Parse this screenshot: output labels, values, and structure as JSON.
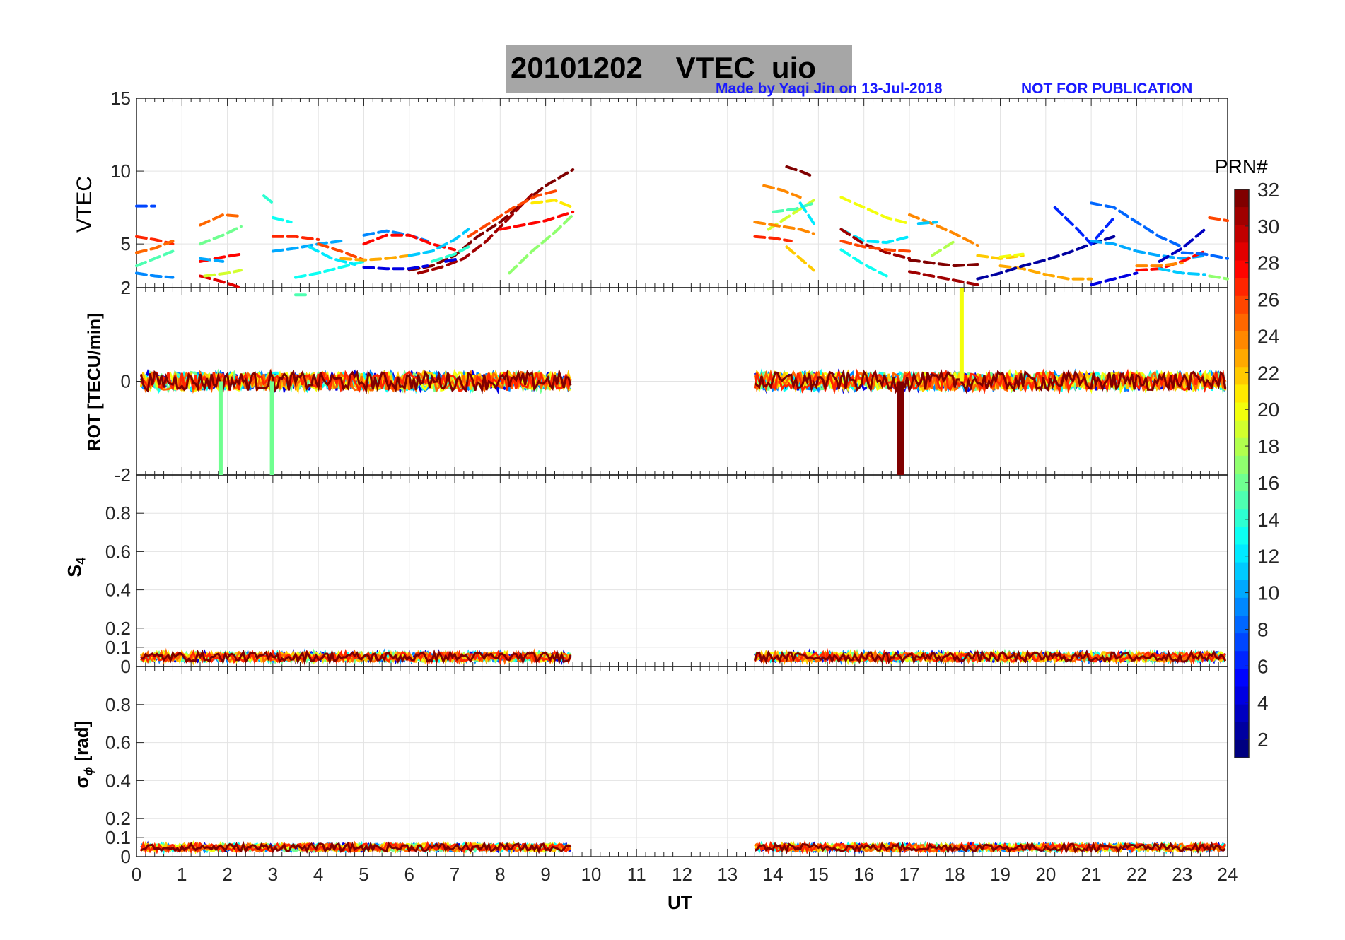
{
  "title": {
    "date": "20101202",
    "product": "VTEC",
    "station": "uio"
  },
  "credit": {
    "author": "Made by Yaqi Jin on 13-Jul-2018",
    "notice": "NOT FOR PUBLICATION"
  },
  "colorbar": {
    "title": "PRN#",
    "ticks": [
      "2",
      "4",
      "6",
      "8",
      "10",
      "12",
      "14",
      "16",
      "18",
      "20",
      "22",
      "24",
      "26",
      "28",
      "30",
      "32"
    ],
    "range": [
      1,
      32
    ],
    "colormap": "jet"
  },
  "chart_data": [
    {
      "type": "line",
      "panel": "vtec",
      "ylabel": "VTEC",
      "ylim": [
        2,
        15
      ],
      "yticks": [
        "15",
        "10",
        "5",
        "2"
      ],
      "xlim": [
        0,
        24
      ],
      "grid": true,
      "series": [
        {
          "prn": 32,
          "x": [
            6.0,
            6.5,
            7.0,
            7.5,
            8.0,
            8.5,
            9.0,
            9.6
          ],
          "y": [
            3.2,
            3.5,
            4.2,
            5.5,
            6.5,
            7.8,
            9.0,
            10.1
          ]
        },
        {
          "prn": 31,
          "x": [
            6.2,
            6.7,
            7.2,
            7.7,
            8.2,
            8.7
          ],
          "y": [
            3.0,
            3.4,
            4.0,
            5.2,
            6.8,
            8.4
          ]
        },
        {
          "prn": 26,
          "x": [
            7.3,
            7.8,
            8.3,
            8.8,
            9.3
          ],
          "y": [
            5.5,
            6.5,
            7.5,
            8.3,
            8.7
          ]
        },
        {
          "prn": 28,
          "x": [
            8.0,
            8.5,
            9.0,
            9.6
          ],
          "y": [
            6.0,
            6.3,
            6.6,
            7.2
          ]
        },
        {
          "prn": 21,
          "x": [
            8.7,
            9.2,
            9.6
          ],
          "y": [
            7.8,
            8.0,
            7.5
          ]
        },
        {
          "prn": 17,
          "x": [
            8.2,
            8.7,
            9.2,
            9.6
          ],
          "y": [
            3.0,
            4.5,
            5.8,
            7.0
          ]
        },
        {
          "prn": 27,
          "x": [
            0.0,
            0.4,
            0.8
          ],
          "y": [
            5.5,
            5.3,
            5.0
          ]
        },
        {
          "prn": 25,
          "x": [
            0.0,
            0.4,
            0.8
          ],
          "y": [
            4.4,
            4.7,
            5.2
          ]
        },
        {
          "prn": 15,
          "x": [
            0.0,
            0.4,
            0.8
          ],
          "y": [
            3.5,
            4.0,
            4.5
          ]
        },
        {
          "prn": 9,
          "x": [
            0.0,
            0.4,
            0.8
          ],
          "y": [
            3.0,
            2.8,
            2.7
          ]
        },
        {
          "prn": 7,
          "x": [
            0.0,
            0.4
          ],
          "y": [
            7.6,
            7.6
          ]
        },
        {
          "prn": 25,
          "x": [
            1.4,
            1.9,
            2.3
          ],
          "y": [
            6.3,
            7.0,
            6.9
          ]
        },
        {
          "prn": 16,
          "x": [
            1.4,
            1.9,
            2.3
          ],
          "y": [
            5.0,
            5.6,
            6.2
          ]
        },
        {
          "prn": 28,
          "x": [
            1.4,
            1.9,
            2.3
          ],
          "y": [
            3.8,
            4.1,
            4.3
          ]
        },
        {
          "prn": 10,
          "x": [
            1.4,
            1.9
          ],
          "y": [
            4.0,
            3.8
          ]
        },
        {
          "prn": 29,
          "x": [
            1.4,
            1.9,
            2.3
          ],
          "y": [
            2.8,
            2.4,
            2.0
          ]
        },
        {
          "prn": 19,
          "x": [
            1.5,
            2.0,
            2.3
          ],
          "y": [
            2.8,
            3.0,
            3.2
          ]
        },
        {
          "prn": 14,
          "x": [
            2.8,
            3.0
          ],
          "y": [
            8.3,
            7.8
          ]
        },
        {
          "prn": 13,
          "x": [
            3.0,
            3.4
          ],
          "y": [
            6.8,
            6.5
          ]
        },
        {
          "prn": 27,
          "x": [
            3.0,
            3.5,
            4.0
          ],
          "y": [
            5.5,
            5.5,
            5.3
          ]
        },
        {
          "prn": 10,
          "x": [
            3.0,
            3.5,
            4.0,
            4.5
          ],
          "y": [
            4.5,
            4.7,
            5.0,
            5.2
          ]
        },
        {
          "prn": 13,
          "x": [
            3.5,
            4.0,
            4.5,
            5.0
          ],
          "y": [
            2.7,
            3.0,
            3.4,
            3.8
          ]
        },
        {
          "prn": 15,
          "x": [
            3.5,
            3.8
          ],
          "y": [
            1.5,
            1.5
          ]
        },
        {
          "prn": 12,
          "x": [
            3.8,
            4.3,
            4.8
          ],
          "y": [
            4.8,
            4.0,
            3.6
          ]
        },
        {
          "prn": 26,
          "x": [
            4.0,
            4.5,
            5.0
          ],
          "y": [
            5.0,
            4.5,
            3.9
          ]
        },
        {
          "prn": 23,
          "x": [
            4.5,
            5.0,
            5.5,
            6.0
          ],
          "y": [
            4.0,
            3.9,
            4.0,
            4.2
          ]
        },
        {
          "prn": 9,
          "x": [
            5.0,
            5.5,
            6.0,
            6.4
          ],
          "y": [
            5.6,
            5.9,
            5.6,
            5.2
          ]
        },
        {
          "prn": 4,
          "x": [
            5.0,
            5.5,
            6.0,
            6.4
          ],
          "y": [
            3.4,
            3.3,
            3.3,
            3.5
          ]
        },
        {
          "prn": 28,
          "x": [
            5.0,
            5.5,
            6.0,
            6.5,
            7.0
          ],
          "y": [
            5.0,
            5.6,
            5.6,
            5.0,
            4.6
          ]
        },
        {
          "prn": 11,
          "x": [
            6.0,
            6.5,
            7.0,
            7.3
          ],
          "y": [
            4.2,
            4.5,
            5.3,
            6.0
          ]
        },
        {
          "prn": 14,
          "x": [
            6.5,
            7.0,
            7.3
          ],
          "y": [
            3.8,
            4.3,
            4.8
          ]
        },
        {
          "prn": 4,
          "x": [
            6.8,
            7.1
          ],
          "y": [
            3.8,
            4.0
          ]
        },
        {
          "prn": 32,
          "x": [
            14.3,
            14.6,
            14.9
          ],
          "y": [
            10.3,
            10.0,
            9.6
          ]
        },
        {
          "prn": 24,
          "x": [
            13.8,
            14.2,
            14.6
          ],
          "y": [
            9.0,
            8.7,
            8.2
          ]
        },
        {
          "prn": 19,
          "x": [
            13.9,
            14.4,
            14.9
          ],
          "y": [
            6.0,
            7.0,
            8.0
          ]
        },
        {
          "prn": 15,
          "x": [
            14.0,
            14.5,
            14.9
          ],
          "y": [
            7.2,
            7.4,
            7.8
          ]
        },
        {
          "prn": 24,
          "x": [
            13.6,
            14.0,
            14.6,
            14.9
          ],
          "y": [
            6.5,
            6.3,
            6.0,
            5.7
          ]
        },
        {
          "prn": 27,
          "x": [
            13.6,
            14.0,
            14.4
          ],
          "y": [
            5.5,
            5.4,
            5.2
          ]
        },
        {
          "prn": 22,
          "x": [
            14.3,
            14.6,
            14.9
          ],
          "y": [
            4.8,
            4.0,
            3.2
          ]
        },
        {
          "prn": 12,
          "x": [
            14.6,
            14.9
          ],
          "y": [
            7.8,
            6.4
          ]
        },
        {
          "prn": 20,
          "x": [
            15.5,
            16.0,
            16.5,
            17.0
          ],
          "y": [
            8.2,
            7.5,
            6.8,
            6.4
          ]
        },
        {
          "prn": 12,
          "x": [
            15.5,
            16.0,
            16.5,
            17.0
          ],
          "y": [
            6.0,
            5.2,
            5.1,
            5.5
          ]
        },
        {
          "prn": 31,
          "x": [
            15.5,
            16.0,
            16.5,
            17.0
          ],
          "y": [
            6.0,
            5.0,
            4.4,
            4.0
          ]
        },
        {
          "prn": 26,
          "x": [
            15.5,
            16.0,
            16.5,
            17.0
          ],
          "y": [
            5.2,
            4.8,
            4.6,
            4.5
          ]
        },
        {
          "prn": 13,
          "x": [
            15.5,
            16.0,
            16.5
          ],
          "y": [
            4.6,
            3.6,
            2.8
          ]
        },
        {
          "prn": 24,
          "x": [
            17.0,
            17.5,
            18.0,
            18.5
          ],
          "y": [
            7.0,
            6.4,
            5.7,
            4.9
          ]
        },
        {
          "prn": 11,
          "x": [
            17.2,
            17.6
          ],
          "y": [
            6.4,
            6.5
          ]
        },
        {
          "prn": 31,
          "x": [
            17.0,
            17.5,
            18.0,
            18.5
          ],
          "y": [
            3.1,
            2.8,
            2.5,
            2.2
          ]
        },
        {
          "prn": 32,
          "x": [
            17.0,
            17.5,
            18.0,
            18.5
          ],
          "y": [
            3.9,
            3.7,
            3.5,
            3.6
          ]
        },
        {
          "prn": 18,
          "x": [
            17.5,
            17.8,
            18.0
          ],
          "y": [
            4.2,
            4.8,
            5.2
          ]
        },
        {
          "prn": 22,
          "x": [
            18.5,
            19.0,
            19.5
          ],
          "y": [
            4.2,
            4.0,
            4.2
          ]
        },
        {
          "prn": 20,
          "x": [
            19.0,
            19.5
          ],
          "y": [
            4.1,
            4.3
          ]
        },
        {
          "prn": 23,
          "x": [
            19.0,
            19.5,
            20.0,
            20.5,
            21.0
          ],
          "y": [
            3.5,
            3.3,
            2.9,
            2.6,
            2.6
          ]
        },
        {
          "prn": 2,
          "x": [
            18.5,
            19.0,
            19.5,
            20.0,
            20.5,
            21.0,
            21.5
          ],
          "y": [
            2.6,
            3.0,
            3.5,
            3.9,
            4.4,
            5.0,
            5.5
          ]
        },
        {
          "prn": 6,
          "x": [
            20.2,
            20.7,
            21.0,
            21.5
          ],
          "y": [
            7.5,
            6.0,
            5.0,
            6.8
          ]
        },
        {
          "prn": 10,
          "x": [
            21.0,
            21.5,
            22.0,
            22.5,
            23.0,
            23.5
          ],
          "y": [
            5.2,
            5.0,
            4.5,
            4.2,
            4.0,
            4.2
          ]
        },
        {
          "prn": 8,
          "x": [
            21.0,
            21.5,
            22.0,
            22.5,
            23.0
          ],
          "y": [
            7.8,
            7.5,
            6.5,
            5.5,
            4.8
          ]
        },
        {
          "prn": 4,
          "x": [
            21.0,
            21.5,
            22.0
          ],
          "y": [
            2.2,
            2.6,
            3.0
          ]
        },
        {
          "prn": 28,
          "x": [
            22.0,
            22.5,
            23.0,
            23.5
          ],
          "y": [
            3.2,
            3.3,
            3.8,
            4.5
          ]
        },
        {
          "prn": 24,
          "x": [
            22.0,
            22.5,
            23.0
          ],
          "y": [
            3.5,
            3.5,
            3.7
          ]
        },
        {
          "prn": 11,
          "x": [
            22.5,
            23.0,
            23.5
          ],
          "y": [
            3.3,
            3.0,
            2.9
          ]
        },
        {
          "prn": 3,
          "x": [
            22.5,
            23.0,
            23.5
          ],
          "y": [
            3.8,
            4.7,
            6.0
          ]
        },
        {
          "prn": 8,
          "x": [
            23.0,
            23.5,
            24.0
          ],
          "y": [
            4.4,
            4.3,
            4.0
          ]
        },
        {
          "prn": 26,
          "x": [
            23.6,
            24.0
          ],
          "y": [
            6.8,
            6.6
          ]
        },
        {
          "prn": 17,
          "x": [
            23.6,
            24.0
          ],
          "y": [
            2.8,
            2.6
          ]
        }
      ]
    },
    {
      "type": "line",
      "panel": "rot",
      "ylabel": "ROT [TECU/min]",
      "ylim": [
        -2,
        2
      ],
      "yticks": [
        "2",
        "0",
        "-2"
      ],
      "xlim": [
        0,
        24
      ],
      "grid": true,
      "coverage": [
        [
          0.1,
          9.6
        ],
        [
          13.6,
          24.0
        ]
      ],
      "noise_band": 0.2,
      "spikes": [
        {
          "x": 1.85,
          "y": -2.0,
          "prn": 16
        },
        {
          "x": 2.98,
          "y": -2.0,
          "prn": 16
        },
        {
          "x": 16.8,
          "y": -2.0,
          "prn": 32
        },
        {
          "x": 18.15,
          "y": 2.0,
          "prn": 20
        }
      ]
    },
    {
      "type": "line",
      "panel": "s4",
      "ylabel": "S4",
      "ylim": [
        0,
        1
      ],
      "yticks": [
        "0.8",
        "0.6",
        "0.4",
        "0.2",
        "0.1",
        "0"
      ],
      "xlim": [
        0,
        24
      ],
      "grid": true,
      "coverage": [
        [
          0.1,
          9.6
        ],
        [
          13.6,
          24.0
        ]
      ],
      "typical_level": 0.04,
      "max_level": 0.11
    },
    {
      "type": "line",
      "panel": "sigma_phi",
      "ylabel": "σϕ [rad]",
      "ylim": [
        0,
        1
      ],
      "yticks": [
        "0.8",
        "0.6",
        "0.4",
        "0.2",
        "0.1",
        "0"
      ],
      "xlim": [
        0,
        24
      ],
      "xticks": [
        "0",
        "1",
        "2",
        "3",
        "4",
        "5",
        "6",
        "7",
        "8",
        "9",
        "10",
        "11",
        "12",
        "13",
        "14",
        "15",
        "16",
        "17",
        "18",
        "19",
        "20",
        "21",
        "22",
        "23",
        "24"
      ],
      "xlabel": "UT",
      "grid": true,
      "coverage": [
        [
          0.1,
          9.6
        ],
        [
          13.6,
          24.0
        ]
      ],
      "typical_level": 0.04,
      "max_level": 0.12
    }
  ]
}
